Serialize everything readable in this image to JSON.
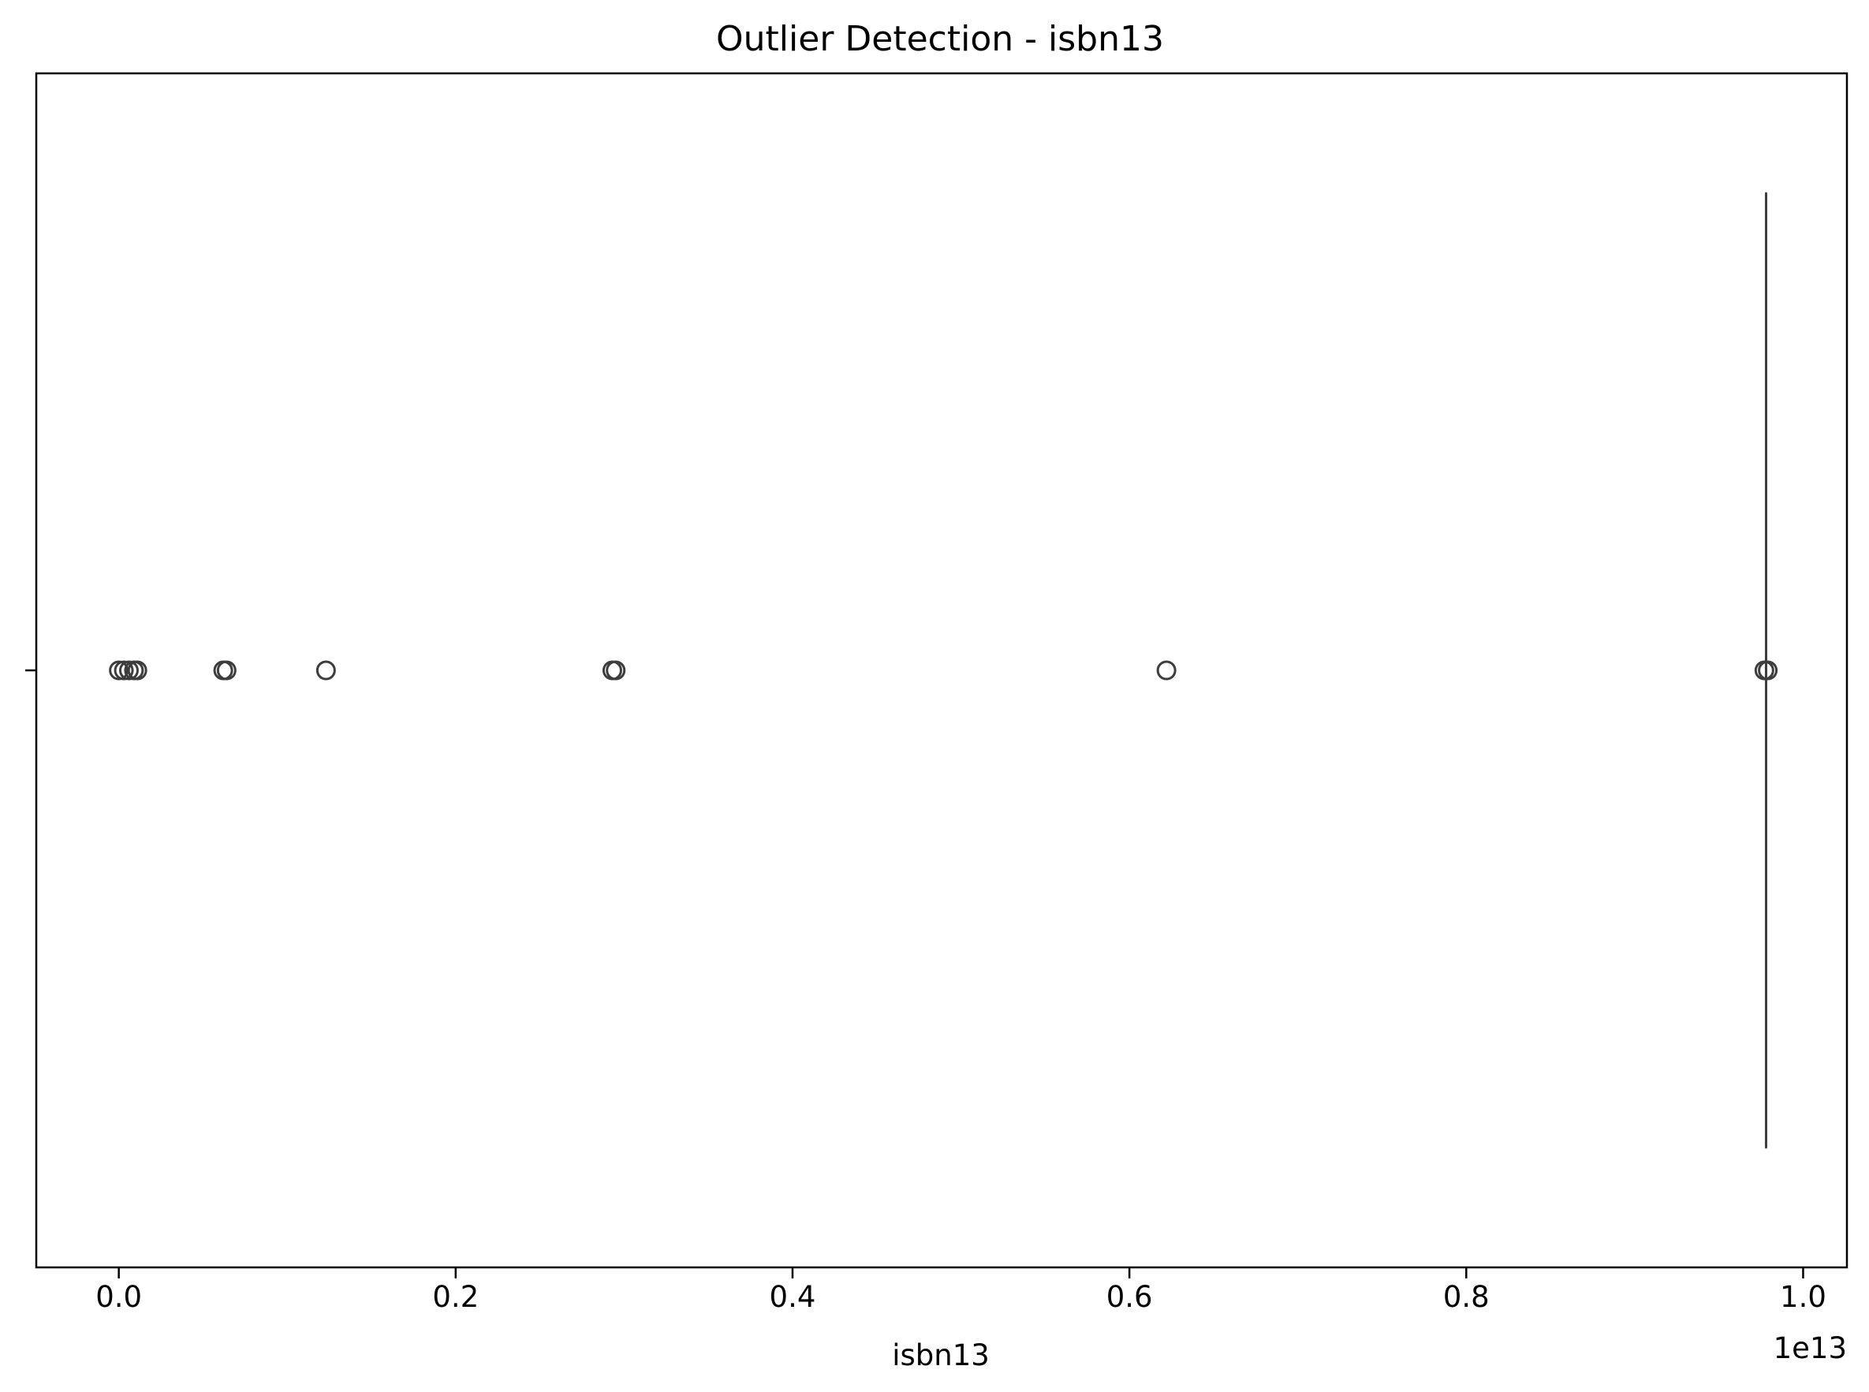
{
  "chart_data": {
    "type": "box",
    "title": "Outlier Detection - isbn13",
    "xlabel": "isbn13",
    "ylabel": "",
    "x_offset_label": "1e13",
    "xlim": [
      -0.049,
      1.026
    ],
    "xticks": [
      0.0,
      0.2,
      0.4,
      0.6,
      0.8,
      1.0
    ],
    "xtick_labels": [
      "0.0",
      "0.2",
      "0.4",
      "0.6",
      "0.8",
      "1.0"
    ],
    "grid": false,
    "box": {
      "q1": 0.978,
      "median": 0.978,
      "q3": 0.978,
      "whisker_low": 0.978,
      "whisker_high": 0.978
    },
    "outliers": [
      0.0,
      0.003,
      0.006,
      0.009,
      0.011,
      0.062,
      0.064,
      0.123,
      0.293,
      0.295,
      0.622,
      0.977,
      0.979
    ]
  }
}
